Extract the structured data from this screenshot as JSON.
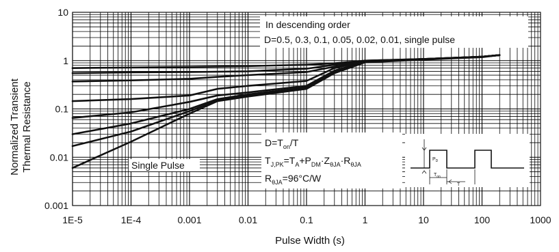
{
  "chart_data": {
    "type": "line",
    "title": "",
    "xlabel": "Pulse Width (s)",
    "ylabel": "Normalized Transient Thermal Resistance",
    "ylabel_lines": [
      "Normalized Transient",
      "Thermal Resistance"
    ],
    "x_scale": "log",
    "y_scale": "log",
    "xlim": [
      1e-05,
      1000
    ],
    "ylim": [
      0.001,
      10
    ],
    "grid": true,
    "x_ticks": [
      {
        "value": 1e-05,
        "label": "1E-5"
      },
      {
        "value": 0.0001,
        "label": "1E-4"
      },
      {
        "value": 0.001,
        "label": "0.001"
      },
      {
        "value": 0.01,
        "label": "0.01"
      },
      {
        "value": 0.1,
        "label": "0.1"
      },
      {
        "value": 1,
        "label": "1"
      },
      {
        "value": 10,
        "label": "10"
      },
      {
        "value": 100,
        "label": "100"
      },
      {
        "value": 1000,
        "label": "1000"
      }
    ],
    "y_ticks": [
      {
        "value": 0.001,
        "label": "0.001"
      },
      {
        "value": 0.01,
        "label": "0.01"
      },
      {
        "value": 0.1,
        "label": "0.1"
      },
      {
        "value": 1,
        "label": "1"
      },
      {
        "value": 10,
        "label": "10"
      }
    ],
    "series": [
      {
        "id": "d0.5",
        "x": [
          1e-05,
          0.0001,
          0.001,
          0.01,
          0.1,
          0.3,
          1,
          10,
          100,
          200
        ],
        "y": [
          0.7,
          0.72,
          0.74,
          0.77,
          0.82,
          0.88,
          1.0,
          1.08,
          1.2,
          1.3
        ]
      },
      {
        "id": "d0.3",
        "x": [
          1e-05,
          0.0001,
          0.001,
          0.01,
          0.1,
          0.3,
          1,
          10,
          100,
          200
        ],
        "y": [
          0.55,
          0.57,
          0.58,
          0.6,
          0.68,
          0.82,
          1.0,
          1.08,
          1.2,
          1.3
        ]
      },
      {
        "id": "d0.1",
        "x": [
          1e-05,
          0.0001,
          0.001,
          0.003,
          0.01,
          0.1,
          0.3,
          1,
          10,
          100,
          200
        ],
        "y": [
          0.37,
          0.39,
          0.42,
          0.46,
          0.5,
          0.58,
          0.75,
          0.98,
          1.08,
          1.2,
          1.3
        ]
      },
      {
        "id": "d0.05",
        "x": [
          1e-05,
          0.0001,
          0.001,
          0.003,
          0.01,
          0.1,
          0.3,
          1,
          10,
          100,
          200
        ],
        "y": [
          0.145,
          0.16,
          0.19,
          0.26,
          0.3,
          0.38,
          0.7,
          0.97,
          1.08,
          1.2,
          1.3
        ]
      },
      {
        "id": "d0.02",
        "x": [
          1e-05,
          0.0001,
          0.001,
          0.003,
          0.01,
          0.1,
          0.3,
          1,
          10,
          100,
          200
        ],
        "y": [
          0.065,
          0.085,
          0.14,
          0.19,
          0.22,
          0.3,
          0.62,
          0.95,
          1.07,
          1.2,
          1.3
        ]
      },
      {
        "id": "d0.01",
        "x": [
          1e-05,
          0.0001,
          0.001,
          0.003,
          0.01,
          0.1,
          0.3,
          1,
          10,
          100,
          200
        ],
        "y": [
          0.03,
          0.05,
          0.1,
          0.16,
          0.2,
          0.28,
          0.6,
          0.94,
          1.07,
          1.2,
          1.3
        ]
      },
      {
        "id": "d0.01b",
        "x": [
          1e-05,
          0.0001,
          0.001,
          0.003,
          0.01,
          0.1,
          0.3,
          1,
          10,
          100,
          200
        ],
        "y": [
          0.017,
          0.034,
          0.09,
          0.15,
          0.19,
          0.27,
          0.58,
          0.93,
          1.06,
          1.2,
          1.3
        ]
      },
      {
        "id": "single",
        "x": [
          1e-05,
          0.0001,
          0.001,
          0.003,
          0.01,
          0.1,
          0.3,
          1,
          10,
          100,
          200
        ],
        "y": [
          0.006,
          0.021,
          0.08,
          0.145,
          0.18,
          0.26,
          0.55,
          0.92,
          1.05,
          1.18,
          1.3
        ]
      }
    ],
    "annotations": {
      "order_line1": "In descending order",
      "order_line2": "D=0.5, 0.3, 0.1, 0.05, 0.02, 0.01, single pulse",
      "single_pulse": "Single Pulse",
      "duty_eq": "D=T",
      "duty_sub": "on",
      "duty_tail": "/T",
      "tj_eq_parts": [
        "T",
        "J,PK",
        "=T",
        "A",
        "+P",
        "DM",
        "·Z",
        "θJA",
        "·R",
        "θJA"
      ],
      "rth_main": "R",
      "rth_sub": "θJA",
      "rth_value": "=96°C/W"
    },
    "inset": {
      "label_pd": "P",
      "label_pd_sub": "D",
      "label_ton": "T",
      "label_ton_sub": "on",
      "label_t": "T"
    },
    "colors": {
      "line": "#111111",
      "grid": "#000000",
      "background": "#ffffff"
    }
  }
}
